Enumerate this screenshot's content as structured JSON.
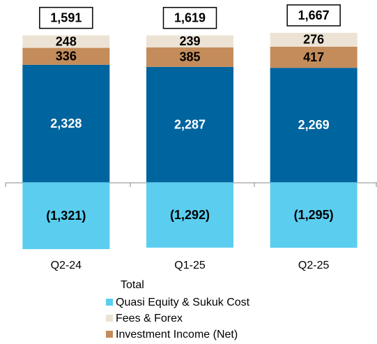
{
  "chart_data": {
    "type": "stacked-bar",
    "categories": [
      "Q2-24",
      "Q1-25",
      "Q2-25"
    ],
    "series": [
      {
        "color": "#00649e",
        "values": [
          2328,
          2287,
          2269
        ],
        "value_labels": [
          "2,328",
          "2,287",
          "2,269"
        ]
      },
      {
        "name": "Investment Income (Net)",
        "color": "#c48c5a",
        "values": [
          336,
          385,
          417
        ]
      },
      {
        "name": "Fees & Forex",
        "color": "#ece3d5",
        "values": [
          248,
          239,
          276
        ]
      },
      {
        "name": "Quasi Equity & Sukuk Cost",
        "color": "#5bcef0",
        "values": [
          -1321,
          -1292,
          -1295
        ],
        "value_labels": [
          "(1,321)",
          "(1,292)",
          "(1,295)"
        ]
      }
    ],
    "totals": {
      "name": "Total",
      "values": [
        1591,
        1619,
        1667
      ],
      "value_labels": [
        "1,591",
        "1,619",
        "1,667"
      ]
    }
  }
}
